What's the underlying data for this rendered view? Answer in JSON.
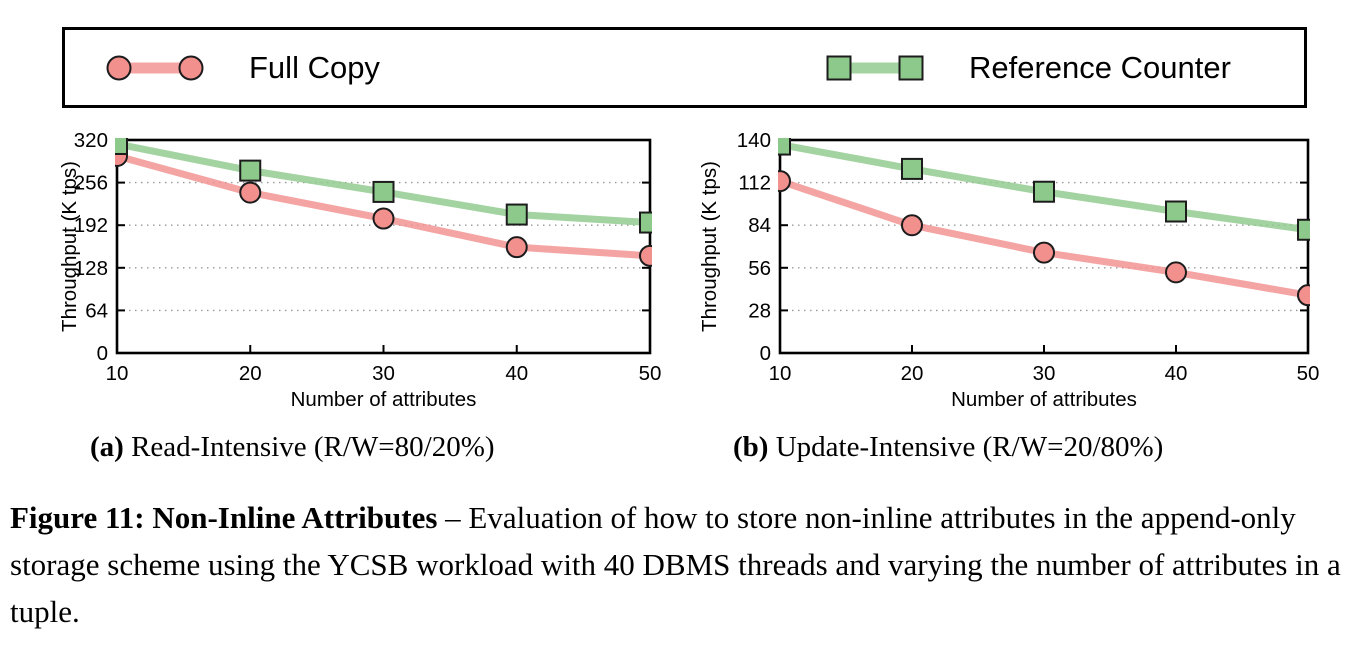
{
  "page": {
    "background": "#ffffff"
  },
  "legend": {
    "items": [
      {
        "label": "Full Copy",
        "marker": "circle",
        "color": "#f2908e"
      },
      {
        "label": "Reference Counter",
        "marker": "square",
        "color": "#8dc98b"
      }
    ]
  },
  "chart_data": [
    {
      "type": "line",
      "panel": "a",
      "subcaption_bold": "(a)",
      "subcaption_rest": " Read-Intensive (R/W=80/20%)",
      "xlabel": "Number of attributes",
      "ylabel": "Throughput (K tps)",
      "x": [
        10,
        20,
        30,
        40,
        50
      ],
      "xticks": [
        10,
        20,
        30,
        40,
        50
      ],
      "xlim": [
        10,
        50
      ],
      "ylim": [
        0,
        320
      ],
      "yticks": [
        0,
        64,
        128,
        192,
        256,
        320
      ],
      "grid": "horizontal-dotted",
      "legend_position": "top-outside",
      "series": [
        {
          "name": "Full Copy",
          "marker": "circle",
          "color": "#f2908e",
          "values": [
            296,
            241,
            202,
            159,
            146
          ]
        },
        {
          "name": "Reference Counter",
          "marker": "square",
          "color": "#8dc98b",
          "values": [
            314,
            274,
            242,
            208,
            196
          ]
        }
      ]
    },
    {
      "type": "line",
      "panel": "b",
      "subcaption_bold": "(b)",
      "subcaption_rest": " Update-Intensive (R/W=20/80%)",
      "xlabel": "Number of attributes",
      "ylabel": "Throughput (K tps)",
      "x": [
        10,
        20,
        30,
        40,
        50
      ],
      "xticks": [
        10,
        20,
        30,
        40,
        50
      ],
      "xlim": [
        10,
        50
      ],
      "ylim": [
        0,
        140
      ],
      "yticks": [
        0,
        28,
        56,
        84,
        112,
        140
      ],
      "grid": "horizontal-dotted",
      "legend_position": "top-outside",
      "series": [
        {
          "name": "Full Copy",
          "marker": "circle",
          "color": "#f2908e",
          "values": [
            113,
            84,
            66,
            53,
            38
          ]
        },
        {
          "name": "Reference Counter",
          "marker": "square",
          "color": "#8dc98b",
          "values": [
            137,
            121,
            106,
            93,
            81
          ]
        }
      ]
    }
  ],
  "caption": {
    "bold": "Figure 11: Non-Inline Attributes",
    "rest": " – Evaluation of how to store non-inline attributes in the append-only storage scheme using the YCSB workload with 40 DBMS threads and varying the number of attributes in a tuple."
  }
}
